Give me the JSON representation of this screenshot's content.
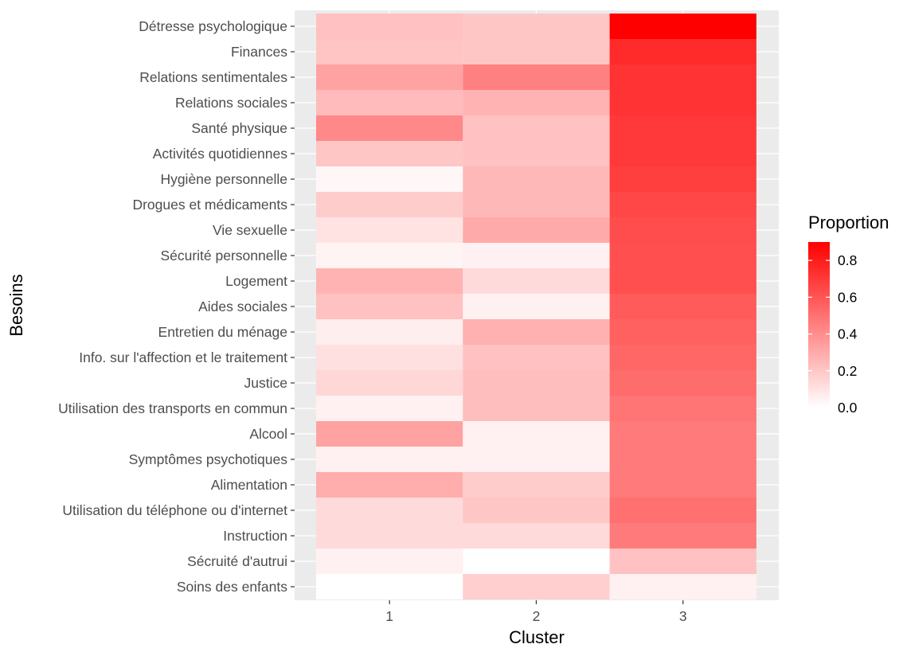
{
  "chart_data": {
    "type": "heatmap",
    "x_categories": [
      "1",
      "2",
      "3"
    ],
    "y_categories": [
      "Détresse psychologique",
      "Finances",
      "Relations sentimentales",
      "Relations sociales",
      "Santé physique",
      "Activités quotidiennes",
      "Hygiène personnelle",
      "Drogues et médicaments",
      "Vie sexuelle",
      "Sécurité personnelle",
      "Logement",
      "Aides sociales",
      "Entretien du ménage",
      "Info. sur l'affection et le traitement",
      "Justice",
      "Utilisation des transports en commun",
      "Alcool",
      "Symptômes psychotiques",
      "Alimentation",
      "Utilisation du téléphone ou d'internet",
      "Instruction",
      "Sécruité d'autrui",
      "Soins des enfants"
    ],
    "values": [
      [
        0.22,
        0.2,
        0.9
      ],
      [
        0.21,
        0.2,
        0.75
      ],
      [
        0.33,
        0.45,
        0.72
      ],
      [
        0.24,
        0.27,
        0.72
      ],
      [
        0.42,
        0.22,
        0.7
      ],
      [
        0.2,
        0.22,
        0.7
      ],
      [
        0.03,
        0.25,
        0.68
      ],
      [
        0.18,
        0.25,
        0.65
      ],
      [
        0.1,
        0.3,
        0.63
      ],
      [
        0.04,
        0.05,
        0.62
      ],
      [
        0.27,
        0.13,
        0.62
      ],
      [
        0.22,
        0.05,
        0.58
      ],
      [
        0.06,
        0.28,
        0.56
      ],
      [
        0.11,
        0.22,
        0.54
      ],
      [
        0.14,
        0.23,
        0.52
      ],
      [
        0.05,
        0.23,
        0.49
      ],
      [
        0.33,
        0.05,
        0.47
      ],
      [
        0.05,
        0.05,
        0.47
      ],
      [
        0.29,
        0.18,
        0.47
      ],
      [
        0.13,
        0.2,
        0.5
      ],
      [
        0.13,
        0.13,
        0.47
      ],
      [
        0.05,
        0.0,
        0.22
      ],
      [
        0.0,
        0.17,
        0.05
      ]
    ],
    "xlabel": "Cluster",
    "ylabel": "Besoins",
    "legend_title": "Proportion",
    "legend_ticks": [
      "0.0",
      "0.2",
      "0.4",
      "0.6",
      "0.8"
    ],
    "legend_tick_values": [
      0.0,
      0.2,
      0.4,
      0.6,
      0.8
    ],
    "color_range": [
      0.0,
      0.9
    ],
    "color_low": "#ffffff",
    "color_high": "#ff0000",
    "panel_background": "#ebebeb",
    "grid": true,
    "legend_position": "right"
  }
}
